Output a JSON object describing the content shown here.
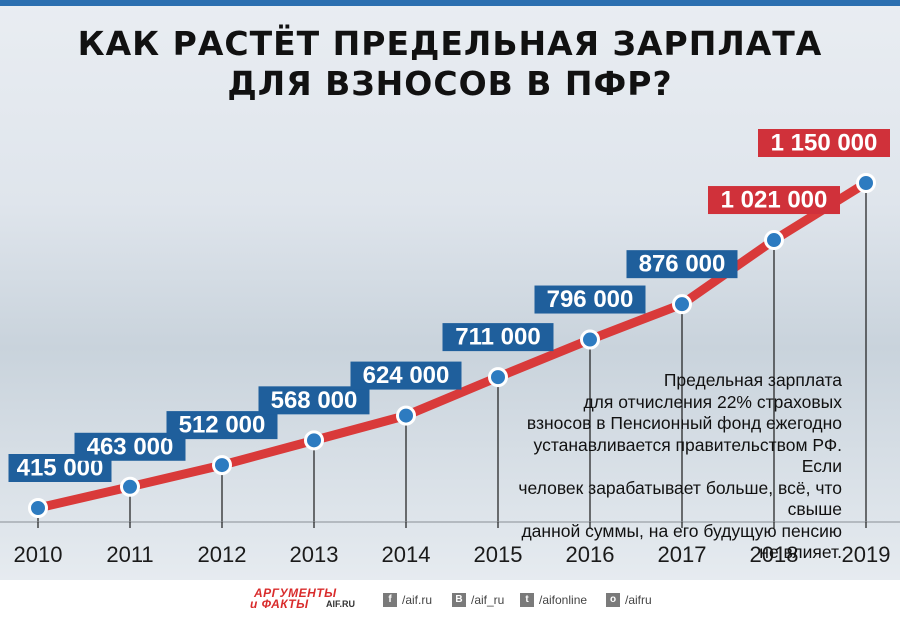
{
  "title": {
    "line1": "КАК РАСТЁТ ПРЕДЕЛЬНАЯ ЗАРПЛАТА",
    "line2": "ДЛЯ ВЗНОСОВ В ПФР?"
  },
  "note_lines": [
    "Предельная зарплата",
    "для отчисления 22% страховых",
    "взносов в Пенсионный фонд ежегодно",
    "устанавливается правительством РФ. Если",
    "человек зарабатывает больше, всё, что свыше",
    "данной суммы, на его будущую пенсию не влияет."
  ],
  "chart_data": {
    "type": "line",
    "x": [
      "2010",
      "2011",
      "2012",
      "2013",
      "2014",
      "2015",
      "2016",
      "2017",
      "2018",
      "2019"
    ],
    "series": [
      {
        "values": [
          415000,
          463000,
          512000,
          568000,
          624000,
          711000,
          796000,
          876000,
          1021000,
          1150000
        ]
      }
    ],
    "labels": [
      "415 000",
      "463 000",
      "512 000",
      "568 000",
      "624 000",
      "711 000",
      "796 000",
      "876 000",
      "1 021 000",
      "1 150 000"
    ],
    "highlight_from_index": 8,
    "colors": {
      "line": "#d93a3a",
      "label_default": "#1f5f9c",
      "label_highlight": "#d0313a",
      "marker_fill": "#2d7bc0"
    },
    "grid": false
  },
  "footer": {
    "logo_line1": "АРГУМЕНТЫ",
    "logo_line2": "и ФАКТЫ",
    "logo_site": "AIF.RU",
    "social": [
      {
        "icon": "facebook-icon",
        "glyph": "f",
        "text": "/aif.ru"
      },
      {
        "icon": "vk-icon",
        "glyph": "B",
        "text": "/aif_ru"
      },
      {
        "icon": "twitter-icon",
        "glyph": "t",
        "text": "/aifonline"
      },
      {
        "icon": "odnoklassniki-icon",
        "glyph": "о",
        "text": "/aifru"
      }
    ]
  }
}
